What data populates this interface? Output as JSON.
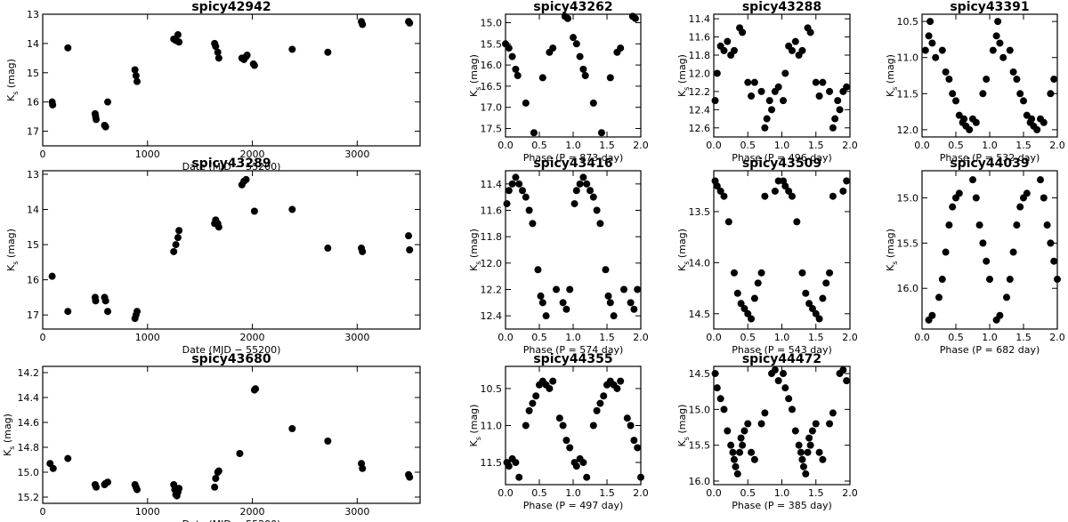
{
  "chart_data": [
    {
      "type": "scatter",
      "title": "spicy42942",
      "xlabel": "Date (MJD − 55200)",
      "ylabel": "K",
      "ylabel_sub": "s",
      "ylabel_unit": " (mag)",
      "xlim": [
        0,
        3600
      ],
      "ylim": [
        17.5,
        13
      ],
      "xticks": [
        0,
        1000,
        2000,
        3000
      ],
      "yticks": [
        13,
        14,
        15,
        16,
        17
      ],
      "x": [
        90,
        95,
        240,
        500,
        505,
        510,
        590,
        600,
        620,
        880,
        890,
        900,
        1250,
        1270,
        1290,
        1300,
        1640,
        1650,
        1670,
        1680,
        1900,
        1920,
        1940,
        1950,
        2010,
        2020,
        2380,
        2720,
        3040,
        3050,
        3490,
        3500
      ],
      "y": [
        16.0,
        16.1,
        14.15,
        16.4,
        16.5,
        16.6,
        16.8,
        16.85,
        16.0,
        14.9,
        15.1,
        15.3,
        13.85,
        13.9,
        13.7,
        13.95,
        14.0,
        14.1,
        14.3,
        14.5,
        14.5,
        14.55,
        14.45,
        14.4,
        14.7,
        14.75,
        14.2,
        14.3,
        13.25,
        13.35,
        13.25,
        13.3
      ]
    },
    {
      "type": "scatter",
      "title": "spicy43262",
      "xlabel": "Phase (P = 873 day)",
      "ylabel": "K",
      "ylabel_sub": "s",
      "ylabel_unit": " (mag)",
      "xlim": [
        0,
        2
      ],
      "ylim": [
        17.7,
        14.8
      ],
      "xticks": [
        0.0,
        0.5,
        1.0,
        1.5,
        2.0
      ],
      "yticks": [
        15.0,
        15.5,
        16.0,
        16.5,
        17.0,
        17.5
      ],
      "x": [
        0.0,
        0.05,
        0.1,
        0.15,
        0.18,
        0.3,
        0.42,
        0.55,
        0.65,
        0.7,
        0.88,
        0.92,
        1.0,
        1.05,
        1.1,
        1.15,
        1.18,
        1.3,
        1.42,
        1.55,
        1.65,
        1.7,
        1.88,
        1.92
      ],
      "y": [
        15.5,
        15.6,
        15.8,
        16.1,
        16.25,
        16.9,
        17.6,
        16.3,
        15.7,
        15.6,
        14.85,
        14.9,
        15.35,
        15.5,
        15.8,
        16.1,
        16.25,
        16.9,
        17.6,
        16.3,
        15.7,
        15.6,
        14.85,
        14.9
      ]
    },
    {
      "type": "scatter",
      "title": "spicy43288",
      "xlabel": "Phase (P = 496 day)",
      "ylabel": "K",
      "ylabel_sub": "s",
      "ylabel_unit": " (mag)",
      "xlim": [
        0,
        2
      ],
      "ylim": [
        12.7,
        11.35
      ],
      "xticks": [
        0.0,
        0.5,
        1.0,
        1.5,
        2.0
      ],
      "yticks": [
        11.4,
        11.6,
        11.8,
        12.0,
        12.2,
        12.4,
        12.6
      ],
      "x": [
        0.02,
        0.05,
        0.1,
        0.15,
        0.2,
        0.25,
        0.3,
        0.38,
        0.42,
        0.5,
        0.55,
        0.6,
        0.7,
        0.75,
        0.78,
        0.82,
        0.85,
        0.9,
        0.95,
        1.02,
        1.05,
        1.1,
        1.15,
        1.2,
        1.25,
        1.3,
        1.38,
        1.42,
        1.5,
        1.55,
        1.6,
        1.7,
        1.75,
        1.78,
        1.82,
        1.85,
        1.9,
        1.95
      ],
      "y": [
        12.3,
        12.0,
        11.7,
        11.75,
        11.65,
        11.8,
        11.75,
        11.5,
        11.55,
        12.1,
        12.25,
        12.1,
        12.2,
        12.6,
        12.5,
        12.3,
        12.4,
        12.2,
        12.15,
        12.3,
        12.0,
        11.7,
        11.75,
        11.65,
        11.8,
        11.75,
        11.5,
        11.55,
        12.1,
        12.25,
        12.1,
        12.2,
        12.6,
        12.5,
        12.3,
        12.4,
        12.2,
        12.15
      ]
    },
    {
      "type": "scatter",
      "title": "spicy43391",
      "xlabel": "Phase (P = 532 day)",
      "ylabel": "K",
      "ylabel_sub": "s",
      "ylabel_unit": " (mag)",
      "xlim": [
        0,
        2
      ],
      "ylim": [
        12.1,
        10.4
      ],
      "xticks": [
        0.0,
        0.5,
        1.0,
        1.5,
        2.0
      ],
      "yticks": [
        10.5,
        11.0,
        11.5,
        12.0
      ],
      "x": [
        0.05,
        0.1,
        0.12,
        0.15,
        0.2,
        0.3,
        0.35,
        0.4,
        0.45,
        0.5,
        0.55,
        0.6,
        0.62,
        0.65,
        0.7,
        0.75,
        0.8,
        0.9,
        0.95,
        1.05,
        1.1,
        1.12,
        1.15,
        1.2,
        1.3,
        1.35,
        1.4,
        1.45,
        1.5,
        1.55,
        1.6,
        1.62,
        1.65,
        1.7,
        1.75,
        1.8,
        1.9,
        1.95
      ],
      "y": [
        10.9,
        10.7,
        10.5,
        10.8,
        11.0,
        10.9,
        11.2,
        11.3,
        11.5,
        11.6,
        11.8,
        11.9,
        11.85,
        11.95,
        12.0,
        11.85,
        11.9,
        11.5,
        11.3,
        10.9,
        10.7,
        10.5,
        10.8,
        11.0,
        10.9,
        11.2,
        11.3,
        11.5,
        11.6,
        11.8,
        11.9,
        11.85,
        11.95,
        12.0,
        11.85,
        11.9,
        11.5,
        11.3
      ]
    },
    {
      "type": "scatter",
      "title": "spicy43289",
      "xlabel": "Date (MJD − 55200)",
      "ylabel": "K",
      "ylabel_sub": "s",
      "ylabel_unit": " (mag)",
      "xlim": [
        0,
        3600
      ],
      "ylim": [
        17.4,
        12.9
      ],
      "xticks": [
        0,
        1000,
        2000,
        3000
      ],
      "yticks": [
        13,
        14,
        15,
        16,
        17
      ],
      "x": [
        90,
        240,
        500,
        505,
        590,
        600,
        620,
        880,
        890,
        900,
        1250,
        1270,
        1290,
        1300,
        1640,
        1650,
        1670,
        1680,
        1900,
        1920,
        1940,
        2020,
        2380,
        2720,
        3040,
        3050,
        3490,
        3500
      ],
      "y": [
        15.9,
        16.9,
        16.5,
        16.6,
        16.5,
        16.6,
        16.9,
        17.1,
        17.0,
        16.9,
        15.2,
        15.0,
        14.8,
        14.6,
        14.4,
        14.3,
        14.4,
        14.5,
        13.3,
        13.2,
        13.15,
        14.05,
        14.0,
        15.1,
        15.1,
        15.2,
        14.75,
        15.15
      ]
    },
    {
      "type": "scatter",
      "title": "spicy43416",
      "xlabel": "Phase (P = 574 day)",
      "ylabel": "K",
      "ylabel_sub": "s",
      "ylabel_unit": " (mag)",
      "xlim": [
        0,
        2
      ],
      "ylim": [
        12.5,
        11.3
      ],
      "xticks": [
        0.0,
        0.5,
        1.0,
        1.5,
        2.0
      ],
      "yticks": [
        11.4,
        11.6,
        11.8,
        12.0,
        12.2,
        12.4
      ],
      "x": [
        0.02,
        0.05,
        0.1,
        0.15,
        0.2,
        0.25,
        0.3,
        0.35,
        0.4,
        0.48,
        0.52,
        0.55,
        0.6,
        0.75,
        0.85,
        0.9,
        0.95,
        1.02,
        1.05,
        1.1,
        1.15,
        1.2,
        1.25,
        1.3,
        1.35,
        1.4,
        1.48,
        1.52,
        1.55,
        1.6,
        1.75,
        1.85,
        1.9,
        1.95
      ],
      "y": [
        11.55,
        11.45,
        11.4,
        11.35,
        11.4,
        11.45,
        11.5,
        11.6,
        11.7,
        12.05,
        12.25,
        12.3,
        12.4,
        12.2,
        12.3,
        12.35,
        12.2,
        11.55,
        11.45,
        11.4,
        11.35,
        11.4,
        11.45,
        11.5,
        11.6,
        11.7,
        12.05,
        12.25,
        12.3,
        12.4,
        12.2,
        12.3,
        12.35,
        12.2
      ]
    },
    {
      "type": "scatter",
      "title": "spicy43509",
      "xlabel": "Phase (P = 543 day)",
      "ylabel": "K",
      "ylabel_sub": "s",
      "ylabel_unit": " (mag)",
      "xlim": [
        0,
        2
      ],
      "ylim": [
        14.65,
        13.1
      ],
      "xticks": [
        0.0,
        0.5,
        1.0,
        1.5,
        2.0
      ],
      "yticks": [
        13.5,
        14.0,
        14.5
      ],
      "x": [
        0.02,
        0.05,
        0.1,
        0.15,
        0.22,
        0.3,
        0.35,
        0.4,
        0.45,
        0.5,
        0.55,
        0.6,
        0.65,
        0.7,
        0.75,
        0.9,
        0.95,
        1.02,
        1.05,
        1.1,
        1.15,
        1.22,
        1.3,
        1.35,
        1.4,
        1.45,
        1.5,
        1.55,
        1.6,
        1.65,
        1.7,
        1.75,
        1.9,
        1.95
      ],
      "y": [
        13.2,
        13.25,
        13.3,
        13.35,
        13.6,
        14.1,
        14.3,
        14.4,
        14.45,
        14.5,
        14.55,
        14.35,
        14.2,
        14.1,
        13.35,
        13.3,
        13.2,
        13.2,
        13.25,
        13.3,
        13.35,
        13.6,
        14.1,
        14.3,
        14.4,
        14.45,
        14.5,
        14.55,
        14.35,
        14.2,
        14.1,
        13.35,
        13.3,
        13.2
      ]
    },
    {
      "type": "scatter",
      "title": "spicy44039",
      "xlabel": "Phase (P = 682 day)",
      "ylabel": "K",
      "ylabel_sub": "s",
      "ylabel_unit": " (mag)",
      "xlim": [
        0,
        2
      ],
      "ylim": [
        16.45,
        14.7
      ],
      "xticks": [
        0.0,
        0.5,
        1.0,
        1.5,
        2.0
      ],
      "yticks": [
        15.0,
        15.5,
        16.0
      ],
      "x": [
        0.1,
        0.15,
        0.25,
        0.3,
        0.35,
        0.4,
        0.45,
        0.5,
        0.55,
        0.75,
        0.8,
        0.85,
        0.9,
        0.95,
        1.0,
        1.1,
        1.15,
        1.25,
        1.3,
        1.35,
        1.4,
        1.45,
        1.5,
        1.55,
        1.75,
        1.8,
        1.85,
        1.9,
        1.95,
        2.0
      ],
      "y": [
        16.35,
        16.3,
        16.1,
        15.9,
        15.6,
        15.3,
        15.1,
        15.0,
        14.95,
        14.8,
        15.0,
        15.3,
        15.5,
        15.7,
        15.9,
        16.35,
        16.3,
        16.1,
        15.9,
        15.6,
        15.3,
        15.1,
        15.0,
        14.95,
        14.8,
        15.0,
        15.3,
        15.5,
        15.7,
        15.9
      ]
    },
    {
      "type": "scatter",
      "title": "spicy43680",
      "xlabel": "Date (MJD − 55200)",
      "ylabel": "K",
      "ylabel_sub": "s",
      "ylabel_unit": " (mag)",
      "xlim": [
        0,
        3600
      ],
      "ylim": [
        15.25,
        14.15
      ],
      "xticks": [
        0,
        1000,
        2000,
        3000
      ],
      "yticks": [
        14.2,
        14.4,
        14.6,
        14.8,
        15.0,
        15.2
      ],
      "x": [
        70,
        100,
        240,
        500,
        510,
        590,
        600,
        620,
        880,
        890,
        900,
        1250,
        1260,
        1270,
        1280,
        1290,
        1300,
        1640,
        1650,
        1670,
        1680,
        1880,
        2020,
        2030,
        2380,
        2720,
        3040,
        3050,
        3490,
        3500
      ],
      "y": [
        14.93,
        14.97,
        14.89,
        15.1,
        15.12,
        15.1,
        15.09,
        15.08,
        15.1,
        15.12,
        15.14,
        15.1,
        15.14,
        15.18,
        15.19,
        15.16,
        15.13,
        15.12,
        15.05,
        15.0,
        14.99,
        14.85,
        14.34,
        14.33,
        14.65,
        14.75,
        14.93,
        14.97,
        15.02,
        15.04
      ]
    },
    {
      "type": "scatter",
      "title": "spicy44355",
      "xlabel": "Phase (P = 497 day)",
      "ylabel": "K",
      "ylabel_sub": "s",
      "ylabel_unit": " (mag)",
      "xlim": [
        0,
        2
      ],
      "ylim": [
        11.8,
        10.2
      ],
      "xticks": [
        0.0,
        0.5,
        1.0,
        1.5,
        2.0
      ],
      "yticks": [
        10.5,
        11.0,
        11.5
      ],
      "x": [
        0.02,
        0.05,
        0.1,
        0.15,
        0.2,
        0.3,
        0.35,
        0.4,
        0.45,
        0.5,
        0.55,
        0.6,
        0.65,
        0.7,
        0.8,
        0.85,
        0.9,
        0.95,
        1.02,
        1.05,
        1.1,
        1.15,
        1.2,
        1.3,
        1.35,
        1.4,
        1.45,
        1.5,
        1.55,
        1.6,
        1.65,
        1.7,
        1.8,
        1.85,
        1.9,
        1.95,
        2.0
      ],
      "y": [
        11.5,
        11.55,
        11.45,
        11.5,
        11.7,
        11.0,
        10.8,
        10.7,
        10.6,
        10.45,
        10.4,
        10.45,
        10.5,
        10.4,
        10.9,
        11.0,
        11.2,
        11.3,
        11.5,
        11.55,
        11.45,
        11.5,
        11.7,
        11.0,
        10.8,
        10.7,
        10.6,
        10.45,
        10.4,
        10.45,
        10.5,
        10.4,
        10.9,
        11.0,
        11.2,
        11.3,
        11.7
      ]
    },
    {
      "type": "scatter",
      "title": "spicy44472",
      "xlabel": "Phase (P = 385 day)",
      "ylabel": "K",
      "ylabel_sub": "s",
      "ylabel_unit": " (mag)",
      "xlim": [
        0,
        2
      ],
      "ylim": [
        16.05,
        14.4
      ],
      "xticks": [
        0.0,
        0.5,
        1.0,
        1.5,
        2.0
      ],
      "yticks": [
        14.5,
        15.0,
        15.5,
        16.0
      ],
      "x": [
        0.02,
        0.05,
        0.1,
        0.15,
        0.2,
        0.25,
        0.28,
        0.3,
        0.32,
        0.35,
        0.38,
        0.4,
        0.42,
        0.45,
        0.5,
        0.55,
        0.6,
        0.7,
        0.75,
        0.85,
        0.9,
        0.95,
        1.02,
        1.05,
        1.1,
        1.15,
        1.2,
        1.25,
        1.28,
        1.3,
        1.32,
        1.35,
        1.38,
        1.4,
        1.42,
        1.45,
        1.5,
        1.55,
        1.6,
        1.7,
        1.75,
        1.85,
        1.9,
        1.95
      ],
      "y": [
        14.5,
        14.7,
        14.85,
        15.0,
        15.3,
        15.5,
        15.6,
        15.7,
        15.8,
        15.9,
        15.6,
        15.4,
        15.5,
        15.3,
        15.2,
        15.6,
        15.7,
        15.2,
        15.05,
        14.5,
        14.45,
        14.6,
        14.5,
        14.7,
        14.85,
        15.0,
        15.3,
        15.5,
        15.6,
        15.7,
        15.8,
        15.9,
        15.6,
        15.4,
        15.5,
        15.3,
        15.2,
        15.6,
        15.7,
        15.2,
        15.05,
        14.5,
        14.45,
        14.6
      ]
    }
  ]
}
